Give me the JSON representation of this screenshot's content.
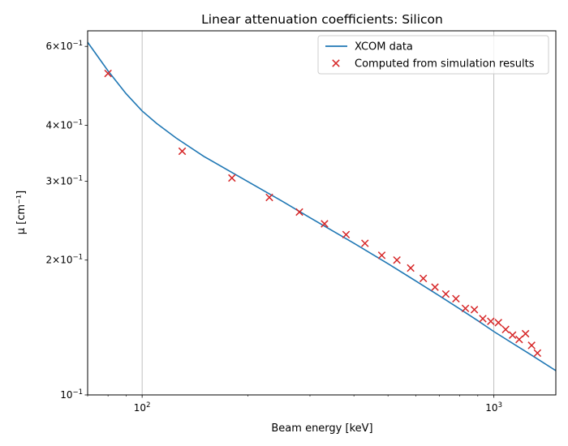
{
  "chart_data": {
    "type": "line",
    "title": "Linear attenuation coefficients: Silicon",
    "xlabel": "Beam energy [keV]",
    "ylabel": "μ [cm⁻¹]",
    "xscale": "log",
    "yscale": "log",
    "xlim": [
      70,
      1500
    ],
    "ylim": [
      0.1,
      0.65
    ],
    "grid": "x-major only",
    "legend_position": "top-right",
    "x_major_ticks": [
      {
        "value": 100,
        "base": "10",
        "exp": "2"
      },
      {
        "value": 1000,
        "base": "10",
        "exp": "3"
      }
    ],
    "y_ticks": [
      {
        "value": 0.6,
        "coef": "6",
        "base": "10",
        "exp": "−1"
      },
      {
        "value": 0.4,
        "coef": "4",
        "base": "10",
        "exp": "−1"
      },
      {
        "value": 0.3,
        "coef": "3",
        "base": "10",
        "exp": "−1"
      },
      {
        "value": 0.2,
        "coef": "2",
        "base": "10",
        "exp": "−1"
      },
      {
        "value": 0.1,
        "coef": "",
        "base": "10",
        "exp": "−1"
      }
    ],
    "series": [
      {
        "name": "XCOM data",
        "style": "line",
        "color": "#1f77b4",
        "x": [
          70,
          80,
          90,
          100,
          110,
          125,
          150,
          200,
          250,
          300,
          400,
          500,
          600,
          700,
          800,
          900,
          1000,
          1250,
          1500
        ],
        "y": [
          0.613,
          0.529,
          0.4706,
          0.4305,
          0.4037,
          0.3745,
          0.3406,
          0.2993,
          0.2708,
          0.2487,
          0.2181,
          0.1963,
          0.1796,
          0.1664,
          0.1556,
          0.1465,
          0.1385,
          0.1241,
          0.1133
        ]
      },
      {
        "name": "Computed from simulation results",
        "style": "scatter",
        "color": "#d62728",
        "x": [
          80,
          130,
          180,
          230,
          280,
          330,
          380,
          430,
          480,
          530,
          580,
          630,
          680,
          730,
          780,
          830,
          880,
          930,
          980,
          1030,
          1080,
          1130,
          1180,
          1230,
          1280,
          1330
        ],
        "y": [
          0.522,
          0.35,
          0.305,
          0.276,
          0.256,
          0.241,
          0.228,
          0.218,
          0.205,
          0.2,
          0.192,
          0.182,
          0.174,
          0.168,
          0.164,
          0.156,
          0.155,
          0.148,
          0.146,
          0.145,
          0.14,
          0.136,
          0.133,
          0.137,
          0.129,
          0.124
        ]
      }
    ]
  }
}
